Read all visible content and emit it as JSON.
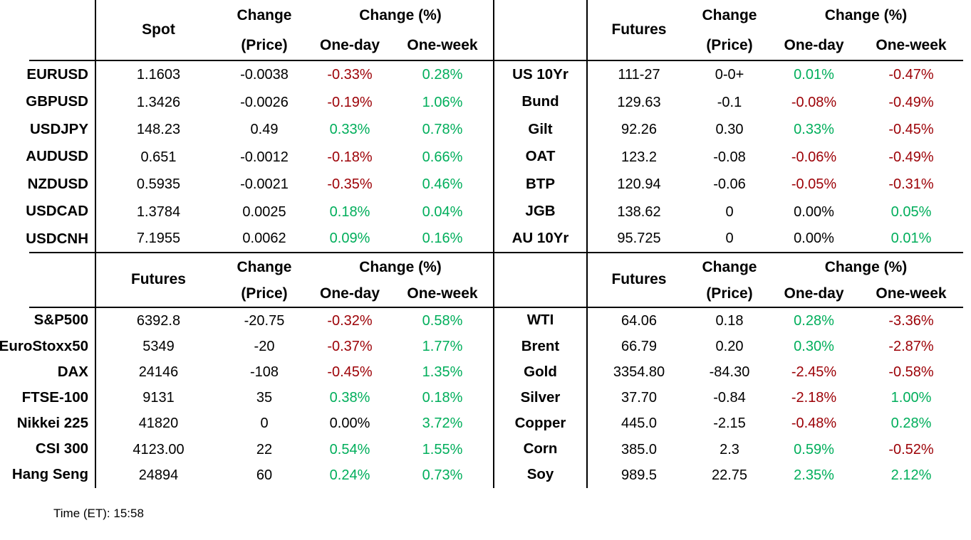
{
  "headers": {
    "change_line1": "Change",
    "change_line2": "(Price)",
    "change_pct": "Change (%)",
    "one_day": "One-day",
    "one_week": "One-week"
  },
  "quadrants": [
    {
      "id": "fx",
      "value_header": "Spot",
      "rows": [
        {
          "label": "EURUSD",
          "value": "1.1603",
          "change": "-0.0038",
          "one_day": "-0.33%",
          "one_week": "0.28%"
        },
        {
          "label": "GBPUSD",
          "value": "1.3426",
          "change": "-0.0026",
          "one_day": "-0.19%",
          "one_week": "1.06%"
        },
        {
          "label": "USDJPY",
          "value": "148.23",
          "change": "0.49",
          "one_day": "0.33%",
          "one_week": "0.78%"
        },
        {
          "label": "AUDUSD",
          "value": "0.651",
          "change": "-0.0012",
          "one_day": "-0.18%",
          "one_week": "0.66%"
        },
        {
          "label": "NZDUSD",
          "value": "0.5935",
          "change": "-0.0021",
          "one_day": "-0.35%",
          "one_week": "0.46%"
        },
        {
          "label": "USDCAD",
          "value": "1.3784",
          "change": "0.0025",
          "one_day": "0.18%",
          "one_week": "0.04%"
        },
        {
          "label": "USDCNH",
          "value": "7.1955",
          "change": "0.0062",
          "one_day": "0.09%",
          "one_week": "0.16%"
        }
      ]
    },
    {
      "id": "bond-futures",
      "value_header": "Futures",
      "rows": [
        {
          "label": "US 10Yr",
          "value": "111-27",
          "change": "0-0+",
          "one_day": "0.01%",
          "one_week": "-0.47%"
        },
        {
          "label": "Bund",
          "value": "129.63",
          "change": "-0.1",
          "one_day": "-0.08%",
          "one_week": "-0.49%"
        },
        {
          "label": "Gilt",
          "value": "92.26",
          "change": "0.30",
          "one_day": "0.33%",
          "one_week": "-0.45%"
        },
        {
          "label": "OAT",
          "value": "123.2",
          "change": "-0.08",
          "one_day": "-0.06%",
          "one_week": "-0.49%"
        },
        {
          "label": "BTP",
          "value": "120.94",
          "change": "-0.06",
          "one_day": "-0.05%",
          "one_week": "-0.31%"
        },
        {
          "label": "JGB",
          "value": "138.62",
          "change": "0",
          "one_day": "0.00%",
          "one_week": "0.05%"
        },
        {
          "label": "AU 10Yr",
          "value": "95.725",
          "change": "0",
          "one_day": "0.00%",
          "one_week": "0.01%"
        }
      ]
    },
    {
      "id": "equity-futures",
      "value_header": "Futures",
      "rows": [
        {
          "label": "S&P500",
          "value": "6392.8",
          "change": "-20.75",
          "one_day": "-0.32%",
          "one_week": "0.58%"
        },
        {
          "label": "EuroStoxx50",
          "value": "5349",
          "change": "-20",
          "one_day": "-0.37%",
          "one_week": "1.77%"
        },
        {
          "label": "DAX",
          "value": "24146",
          "change": "-108",
          "one_day": "-0.45%",
          "one_week": "1.35%"
        },
        {
          "label": "FTSE-100",
          "value": "9131",
          "change": "35",
          "one_day": "0.38%",
          "one_week": "0.18%"
        },
        {
          "label": "Nikkei 225",
          "value": "41820",
          "change": "0",
          "one_day": "0.00%",
          "one_week": "3.72%"
        },
        {
          "label": "CSI 300",
          "value": "4123.00",
          "change": "22",
          "one_day": "0.54%",
          "one_week": "1.55%"
        },
        {
          "label": "Hang Seng",
          "value": "24894",
          "change": "60",
          "one_day": "0.24%",
          "one_week": "0.73%"
        }
      ]
    },
    {
      "id": "commodity-futures",
      "value_header": "Futures",
      "rows": [
        {
          "label": "WTI",
          "value": "64.06",
          "change": "0.18",
          "one_day": "0.28%",
          "one_week": "-3.36%"
        },
        {
          "label": "Brent",
          "value": "66.79",
          "change": "0.20",
          "one_day": "0.30%",
          "one_week": "-2.87%"
        },
        {
          "label": "Gold",
          "value": "3354.80",
          "change": "-84.30",
          "one_day": "-2.45%",
          "one_week": "-0.58%"
        },
        {
          "label": "Silver",
          "value": "37.70",
          "change": "-0.84",
          "one_day": "-2.18%",
          "one_week": "1.00%"
        },
        {
          "label": "Copper",
          "value": "445.0",
          "change": "-2.15",
          "one_day": "-0.48%",
          "one_week": "0.28%"
        },
        {
          "label": "Corn",
          "value": "385.0",
          "change": "2.3",
          "one_day": "0.59%",
          "one_week": "-0.52%"
        },
        {
          "label": "Soy",
          "value": "989.5",
          "change": "22.75",
          "one_day": "2.35%",
          "one_week": "2.12%"
        }
      ]
    }
  ],
  "footer": {
    "time": "Time (ET): 15:58"
  },
  "colors": {
    "positive": "#00AE5B",
    "negative": "#9C0006",
    "neutral": "#000000"
  }
}
